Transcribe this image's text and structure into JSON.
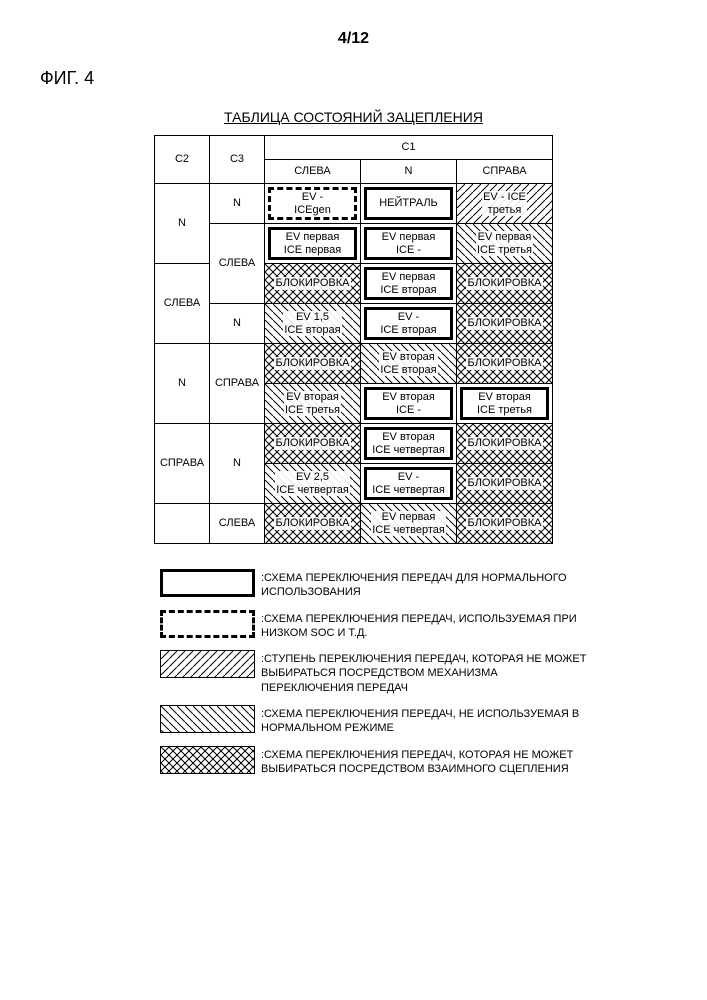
{
  "page_number": "4/12",
  "figure_label": "ФИГ. 4",
  "table_title": "ТАБЛИЦА СОСТОЯНИЙ ЗАЦЕПЛЕНИЯ",
  "headers": {
    "c1": "C1",
    "c2": "C2",
    "c3": "C3",
    "left": "СЛЕВА",
    "n": "N",
    "right": "СПРАВА"
  },
  "row_labels": {
    "c2_N": "N",
    "c2_LEFT": "СЛЕВА",
    "c2_RIGHT": "СПРАВА",
    "c3_N": "N",
    "c3_LEFT": "СЛЕВА",
    "c3_RIGHT": "СПРАВА"
  },
  "cells": {
    "r1c1": "EV -\nICEgen",
    "r1c2": "НЕЙТРАЛЬ",
    "r1c3": "EV - ICE\nтретья",
    "r2c1": "EV первая\nICE первая",
    "r2c2": "EV первая\nICE -",
    "r2c3": "EV первая\nICE третья",
    "r3c1": "БЛОКИРОВКА",
    "r3c2": "EV первая\nICE вторая",
    "r3c3": "БЛОКИРОВКА",
    "r4c1": "EV 1,5\nICE вторая",
    "r4c2": "EV -\nICE вторая",
    "r4c3": "БЛОКИРОВКА",
    "r5c1": "БЛОКИРОВКА",
    "r5c2": "EV вторая\nICE вторая",
    "r5c3": "БЛОКИРОВКА",
    "r6c1": "EV вторая\nICE третья",
    "r6c2": "EV вторая\nICE -",
    "r6c3": "EV вторая\nICE третья",
    "r7c1": "БЛОКИРОВКА",
    "r7c2": "EV вторая\nICE четвертая",
    "r7c3": "БЛОКИРОВКА",
    "r8c1": "EV 2,5\nICE четвертая",
    "r8c2": "EV -\nICE четвертая",
    "r8c3": "БЛОКИРОВКА",
    "r9c1": "БЛОКИРОВКА",
    "r9c2": "EV первая\nICE четвертая",
    "r9c3": "БЛОКИРОВКА"
  },
  "legend": {
    "l1": ":СХЕМА ПЕРЕКЛЮЧЕНИЯ ПЕРЕДАЧ ДЛЯ НОРМАЛЬНОГО ИСПОЛЬЗОВАНИЯ",
    "l2": ":СХЕМА ПЕРЕКЛЮЧЕНИЯ ПЕРЕДАЧ, ИСПОЛЬЗУЕМАЯ ПРИ НИЗКОМ SOC И Т.Д.",
    "l3": ":СТУПЕНЬ ПЕРЕКЛЮЧЕНИЯ ПЕРЕДАЧ, КОТОРАЯ НЕ МОЖЕТ ВЫБИРАТЬСЯ ПОСРЕДСТВОМ МЕХАНИЗМА ПЕРЕКЛЮЧЕНИЯ ПЕРЕДАЧ",
    "l4": ":СХЕМА ПЕРЕКЛЮЧЕНИЯ ПЕРЕДАЧ, НЕ ИСПОЛЬЗУЕМАЯ В НОРМАЛЬНОМ РЕЖИМЕ",
    "l5": ":СХЕМА ПЕРЕКЛЮЧЕНИЯ ПЕРЕДАЧ, КОТОРАЯ НЕ МОЖЕТ ВЫБИРАТЬСЯ ПОСРЕДСТВОМ ВЗАИМНОГО СЦЕПЛЕНИЯ"
  }
}
